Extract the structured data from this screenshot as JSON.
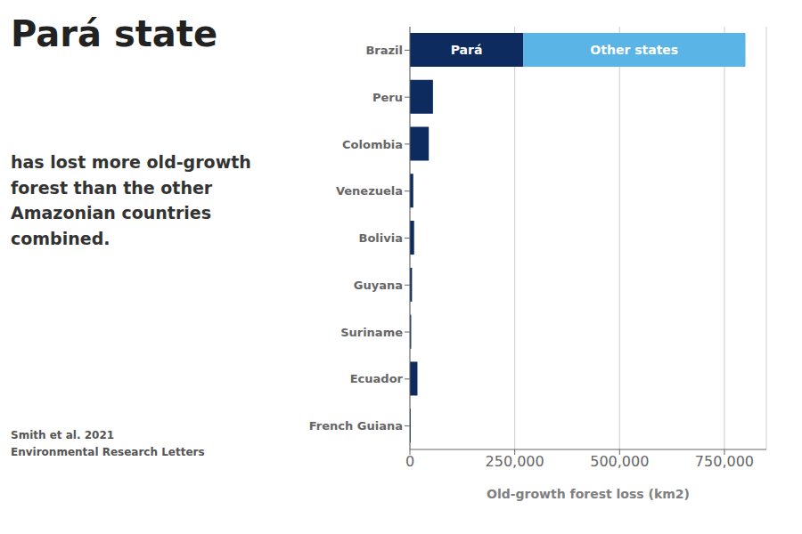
{
  "chart_data": {
    "type": "bar",
    "orientation": "horizontal",
    "stacked": true,
    "title": "Pará state",
    "subtitle": "has lost more old-growth\nforest than the other\nAmazonian countries\ncombined.",
    "source": "Smith et al. 2021\nEnvironmental Research Letters",
    "x_label": "Old-growth forest loss (km2)",
    "categories": [
      "Brazil",
      "Peru",
      "Colombia",
      "Venezuela",
      "Bolivia",
      "Guyana",
      "Suriname",
      "Ecuador",
      "French Guiana"
    ],
    "series": [
      {
        "name": "Pará",
        "color": "#0d2b5e",
        "values": [
          270000,
          55000,
          45000,
          8000,
          10000,
          5000,
          3000,
          18000,
          2000
        ]
      },
      {
        "name": "Other states",
        "color": "#5ab4e5",
        "values": [
          530000,
          0,
          0,
          0,
          0,
          0,
          0,
          0,
          0
        ]
      }
    ],
    "xlim": [
      0,
      850000
    ],
    "xticks": [
      0,
      {
        "value": 250000,
        "label": "250,000"
      },
      {
        "value": 500000,
        "label": "500,000"
      },
      {
        "value": 750000,
        "label": "750,000"
      }
    ],
    "grid": true
  }
}
